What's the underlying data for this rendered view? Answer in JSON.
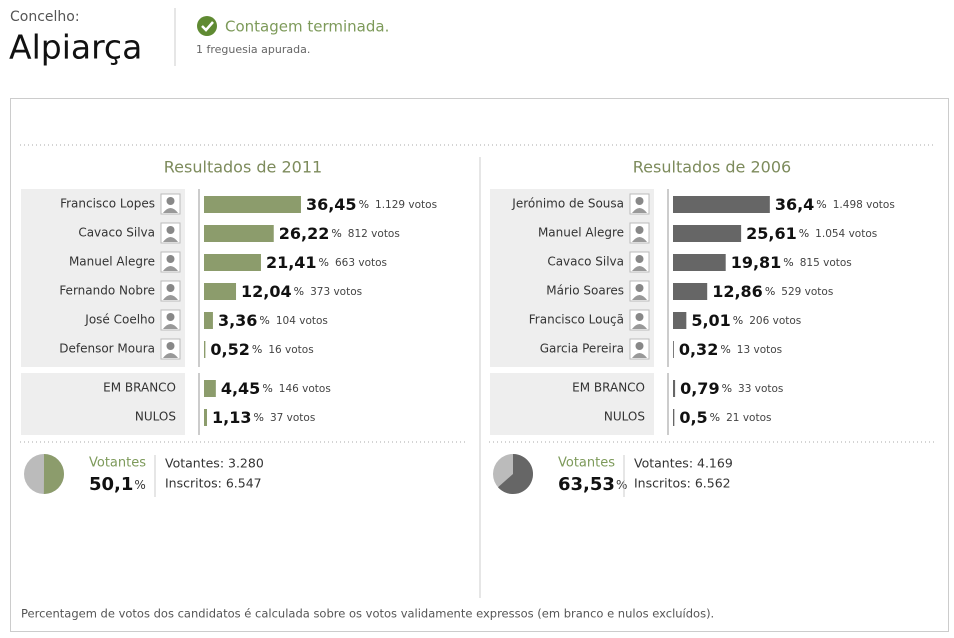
{
  "header": {
    "label": "Concelho:",
    "name": "Alpiarça",
    "status": "Contagem terminada.",
    "note": "1 freguesia apurada."
  },
  "percent_sign": "%",
  "panels": [
    {
      "title": "Resultados de 2011",
      "color": "#8c9c6c",
      "candidates": [
        {
          "name": "Francisco Lopes",
          "value": 36.45,
          "value_label": "36,45",
          "votes": "1.129 votos"
        },
        {
          "name": "Cavaco Silva",
          "value": 26.22,
          "value_label": "26,22",
          "votes": "812 votos"
        },
        {
          "name": "Manuel Alegre",
          "value": 21.41,
          "value_label": "21,41",
          "votes": "663 votos"
        },
        {
          "name": "Fernando Nobre",
          "value": 12.04,
          "value_label": "12,04",
          "votes": "373 votos"
        },
        {
          "name": "José Coelho",
          "value": 3.36,
          "value_label": "3,36",
          "votes": "104 votos"
        },
        {
          "name": "Defensor Moura",
          "value": 0.52,
          "value_label": "0,52",
          "votes": "16 votos"
        }
      ],
      "others": [
        {
          "name": "EM BRANCO",
          "value": 4.45,
          "value_label": "4,45",
          "votes": "146 votos"
        },
        {
          "name": "NULOS",
          "value": 1.13,
          "value_label": "1,13",
          "votes": "37 votos"
        }
      ],
      "turnout": {
        "label": "Votantes",
        "value": 50.1,
        "value_label": "50,1",
        "voters": "Votantes: 3.280",
        "registered": "Inscritos: 6.547"
      }
    },
    {
      "title": "Resultados de 2006",
      "color": "#666666",
      "candidates": [
        {
          "name": "Jerónimo de Sousa",
          "value": 36.4,
          "value_label": "36,4",
          "votes": "1.498 votos"
        },
        {
          "name": "Manuel Alegre",
          "value": 25.61,
          "value_label": "25,61",
          "votes": "1.054 votos"
        },
        {
          "name": "Cavaco Silva",
          "value": 19.81,
          "value_label": "19,81",
          "votes": "815 votos"
        },
        {
          "name": "Mário Soares",
          "value": 12.86,
          "value_label": "12,86",
          "votes": "529 votos"
        },
        {
          "name": "Francisco Louçã",
          "value": 5.01,
          "value_label": "5,01",
          "votes": "206 votos"
        },
        {
          "name": "Garcia Pereira",
          "value": 0.32,
          "value_label": "0,32",
          "votes": "13 votos"
        }
      ],
      "others": [
        {
          "name": "EM BRANCO",
          "value": 0.79,
          "value_label": "0,79",
          "votes": "33 votos"
        },
        {
          "name": "NULOS",
          "value": 0.5,
          "value_label": "0,5",
          "votes": "21 votos"
        }
      ],
      "turnout": {
        "label": "Votantes",
        "value": 63.53,
        "value_label": "63,53",
        "voters": "Votantes: 4.169",
        "registered": "Inscritos: 6.562"
      }
    }
  ],
  "footer": "Percentagem de votos dos candidatos é calculada sobre os votos validamente expressos (em branco e nulos excluídos)."
}
